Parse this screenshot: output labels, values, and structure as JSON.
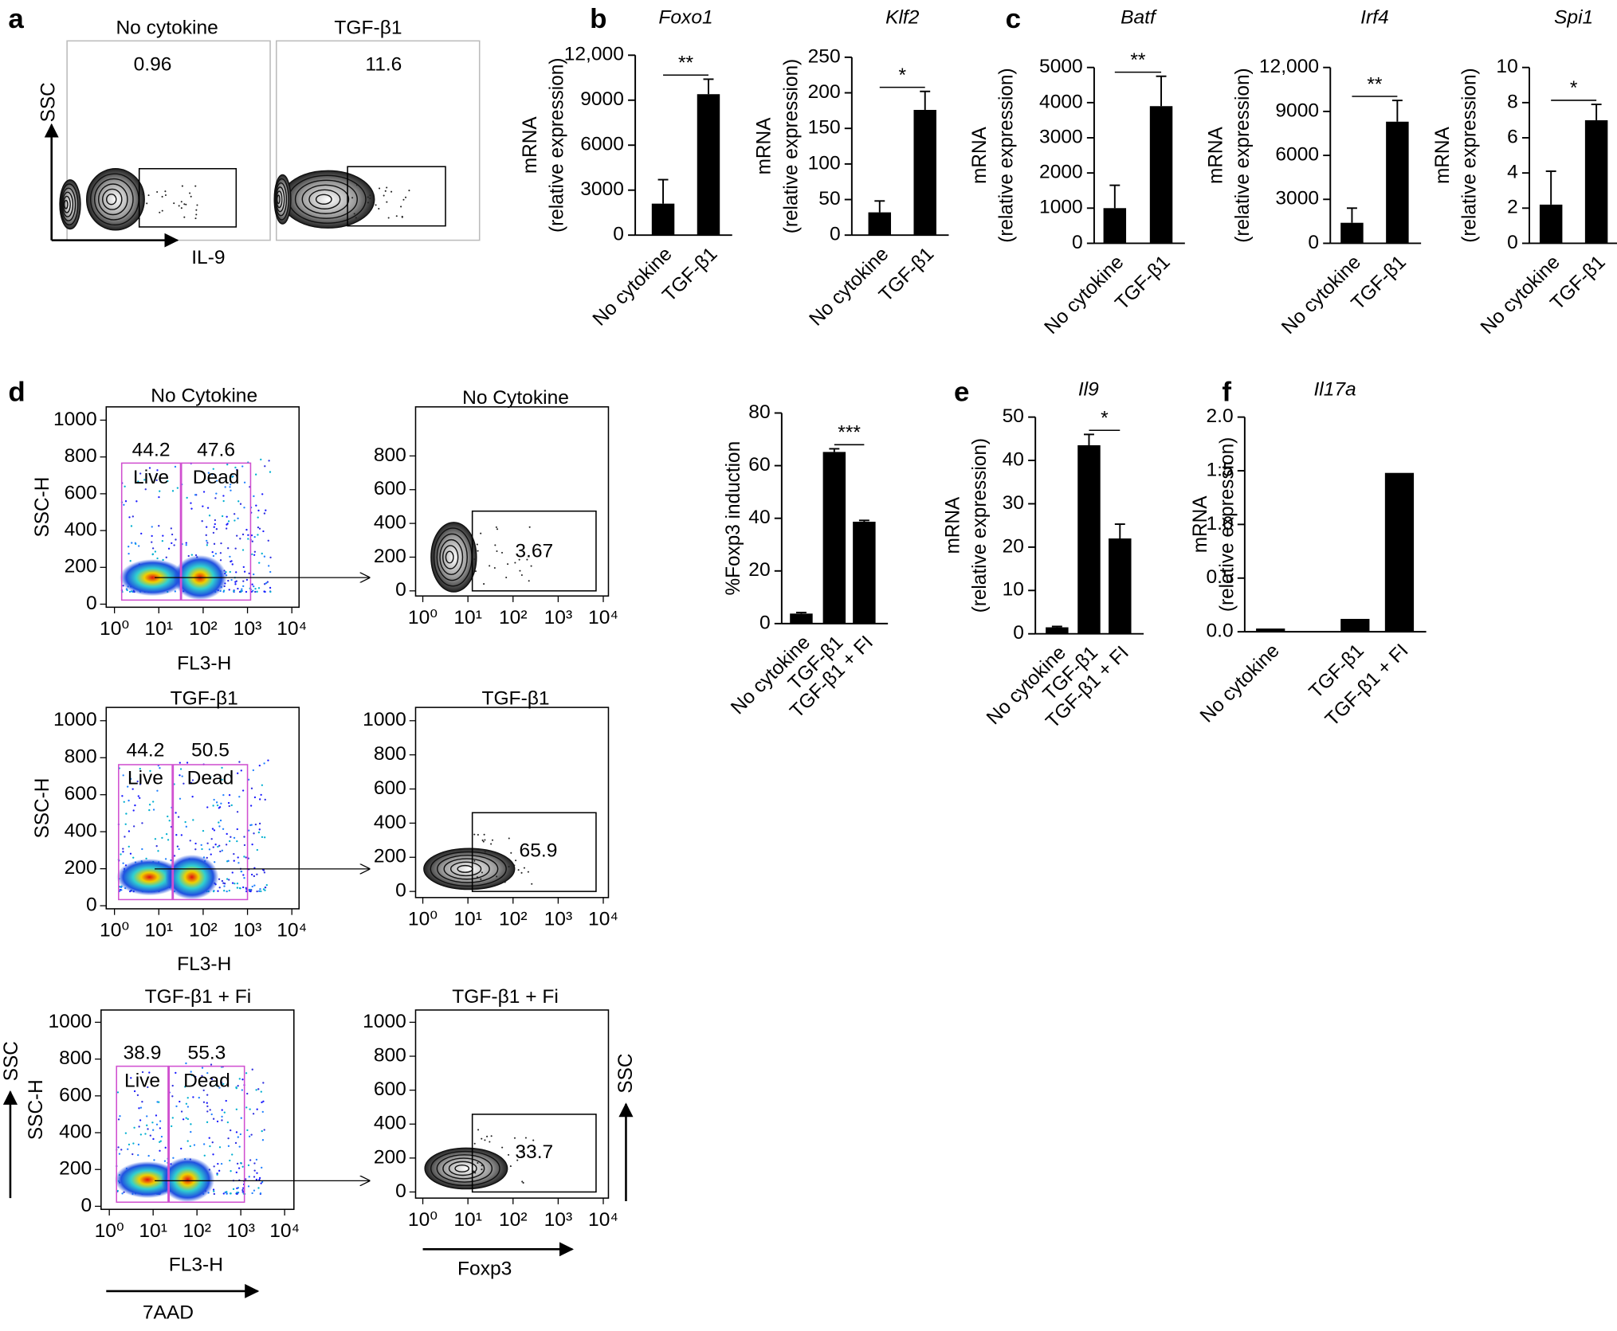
{
  "panel_letters": [
    "a",
    "b",
    "c",
    "d",
    "e",
    "f"
  ],
  "chart_data": [
    {
      "type": "flow-contour",
      "title": "No cytokine",
      "gate_label": 0.96,
      "ylabel": "SSC",
      "xlabel": "IL-9"
    },
    {
      "type": "flow-contour",
      "title": "TGF-β1",
      "gate_label": 11.6
    },
    {
      "type": "bar",
      "title": "Foxo1",
      "ylabel": [
        "mRNA",
        "(relative expression)"
      ],
      "categories": [
        "No cytokine",
        "TGF-β1"
      ],
      "values": [
        2100,
        9400
      ],
      "errors": [
        1600,
        1000
      ],
      "ylim": [
        0,
        12000
      ],
      "yticks": [
        0,
        3000,
        6000,
        9000,
        {
          "value": 12000,
          "label": "12,000"
        }
      ],
      "color": "#000000",
      "significance": "**"
    },
    {
      "type": "bar",
      "title": "Klf2",
      "ylabel": [
        "mRNA",
        "(relative expression)"
      ],
      "categories": [
        "No cytokine",
        "TGF-β1"
      ],
      "values": [
        32,
        176
      ],
      "errors": [
        16,
        26
      ],
      "ylim": [
        0,
        250
      ],
      "yticks": [
        0,
        50,
        100,
        150,
        200,
        250
      ],
      "color": "#000000",
      "significance": "*"
    },
    {
      "type": "bar",
      "title": "Batf",
      "ylabel": [
        "mRNA",
        "(relative expression)"
      ],
      "categories": [
        "No cytokine",
        "TGF-β1"
      ],
      "values": [
        1000,
        3900
      ],
      "errors": [
        650,
        850
      ],
      "ylim": [
        0,
        5000
      ],
      "yticks": [
        0,
        1000,
        2000,
        3000,
        4000,
        5000
      ],
      "color": "#000000",
      "significance": "**"
    },
    {
      "type": "bar",
      "title": "Irf4",
      "ylabel": [
        "mRNA",
        "(relative expression)"
      ],
      "categories": [
        "No cytokine",
        "TGF-β1"
      ],
      "values": [
        1400,
        8300
      ],
      "errors": [
        1000,
        1450
      ],
      "ylim": [
        0,
        12000
      ],
      "yticks": [
        0,
        3000,
        6000,
        9000,
        {
          "value": 12000,
          "label": "12,000"
        }
      ],
      "color": "#000000",
      "significance": "**"
    },
    {
      "type": "bar",
      "title": "Spi1",
      "ylabel": [
        "mRNA",
        "(relative expression)"
      ],
      "categories": [
        "No cytokine",
        "TGF-β1"
      ],
      "values": [
        2.2,
        7.0
      ],
      "errors": [
        1.9,
        0.9
      ],
      "ylim": [
        0,
        10
      ],
      "yticks": [
        0,
        2,
        4,
        6,
        8,
        10
      ],
      "color": "#000000",
      "significance": "*"
    },
    {
      "type": "flow-density",
      "title": "No Cytokine",
      "ylabel": "SSC-H",
      "xlabel": "FL3-H",
      "ylim": [
        0,
        1000
      ],
      "yticks": [
        0,
        200,
        400,
        600,
        800,
        1000
      ],
      "xlim": [
        1,
        10000
      ],
      "log_x": true,
      "xticks": [
        {
          "value": 1,
          "label": "10⁰"
        },
        {
          "value": 10,
          "label": "10¹"
        },
        {
          "value": 100,
          "label": "10²"
        },
        {
          "value": 1000,
          "label": "10³"
        },
        {
          "value": 10000,
          "label": "10⁴"
        }
      ],
      "gates": [
        {
          "name": "Live",
          "value": 44.2
        },
        {
          "name": "Dead",
          "value": 47.6
        }
      ]
    },
    {
      "type": "flow-contour",
      "title": "No Cytokine",
      "ylim": [
        0,
        1000
      ],
      "yticks": [
        0,
        200,
        400,
        600,
        800
      ],
      "xlim": [
        1,
        10000
      ],
      "log_x": true,
      "xticks": [
        {
          "value": 1,
          "label": "10⁰"
        },
        {
          "value": 10,
          "label": "10¹"
        },
        {
          "value": 100,
          "label": "10²"
        },
        {
          "value": 1000,
          "label": "10³"
        },
        {
          "value": 10000,
          "label": "10⁴"
        }
      ],
      "gate_label": 3.67
    },
    {
      "type": "flow-density",
      "title": "TGF-β1",
      "ylabel": "SSC-H",
      "xlabel": "FL3-H",
      "ylim": [
        0,
        1000
      ],
      "yticks": [
        0,
        200,
        400,
        600,
        800,
        1000
      ],
      "xlim": [
        1,
        10000
      ],
      "log_x": true,
      "xticks": [
        {
          "value": 1,
          "label": "10⁰"
        },
        {
          "value": 10,
          "label": "10¹"
        },
        {
          "value": 100,
          "label": "10²"
        },
        {
          "value": 1000,
          "label": "10³"
        },
        {
          "value": 10000,
          "label": "10⁴"
        }
      ],
      "gates": [
        {
          "name": "Live",
          "value": 44.2
        },
        {
          "name": "Dead",
          "value": 50.5
        }
      ]
    },
    {
      "type": "flow-contour",
      "title": "TGF-β1",
      "ylim": [
        0,
        1000
      ],
      "yticks": [
        0,
        200,
        400,
        600,
        800,
        1000
      ],
      "xlim": [
        1,
        10000
      ],
      "log_x": true,
      "xticks": [
        {
          "value": 1,
          "label": "10⁰"
        },
        {
          "value": 10,
          "label": "10¹"
        },
        {
          "value": 100,
          "label": "10²"
        },
        {
          "value": 1000,
          "label": "10³"
        },
        {
          "value": 10000,
          "label": "10⁴"
        }
      ],
      "gate_label": 65.9
    },
    {
      "type": "flow-density",
      "title": "TGF-β1 + Fi",
      "ylabel": "SSC-H",
      "xlabel": "FL3-H",
      "xlabel2": "7AAD",
      "ylabel2": "SSC",
      "ylim": [
        0,
        1000
      ],
      "yticks": [
        0,
        200,
        400,
        600,
        800,
        1000
      ],
      "xlim": [
        1,
        10000
      ],
      "log_x": true,
      "xticks": [
        {
          "value": 1,
          "label": "10⁰"
        },
        {
          "value": 10,
          "label": "10¹"
        },
        {
          "value": 100,
          "label": "10²"
        },
        {
          "value": 1000,
          "label": "10³"
        },
        {
          "value": 10000,
          "label": "10⁴"
        }
      ],
      "gates": [
        {
          "name": "Live",
          "value": 38.9
        },
        {
          "name": "Dead",
          "value": 55.3
        }
      ]
    },
    {
      "type": "flow-contour",
      "title": "TGF-β1 + Fi",
      "xlabel2": "Foxp3",
      "ylabel2": "SSC",
      "ylim": [
        0,
        1000
      ],
      "yticks": [
        0,
        200,
        400,
        600,
        800,
        1000
      ],
      "xlim": [
        1,
        10000
      ],
      "log_x": true,
      "xticks": [
        {
          "value": 1,
          "label": "10⁰"
        },
        {
          "value": 10,
          "label": "10¹"
        },
        {
          "value": 100,
          "label": "10²"
        },
        {
          "value": 1000,
          "label": "10³"
        },
        {
          "value": 10000,
          "label": "10⁴"
        }
      ],
      "gate_label": 33.7
    },
    {
      "type": "bar",
      "ylabel": "%Foxp3 induction",
      "categories": [
        "No cytokine",
        "TGF-β1",
        "TGF-β1 + FI"
      ],
      "values": [
        3.8,
        65.2,
        38.7
      ],
      "errors": [
        0.4,
        1.2,
        0.5
      ],
      "ylim": [
        0,
        80
      ],
      "yticks": [
        0,
        20,
        40,
        60,
        80
      ],
      "color": "#000000",
      "significance": "***"
    },
    {
      "type": "bar",
      "title": "Il9",
      "ylabel": [
        "mRNA",
        "(relative expression)"
      ],
      "categories": [
        "No cytokine",
        "TGF-β1",
        "TGF-β1 + FI"
      ],
      "values": [
        1.5,
        43.5,
        22
      ],
      "errors": [
        0.2,
        2.5,
        3.3
      ],
      "ylim": [
        0,
        50
      ],
      "yticks": [
        0,
        10,
        20,
        30,
        40,
        50
      ],
      "color": "#000000",
      "significance": "*"
    },
    {
      "type": "bar",
      "title": "Il17a",
      "ylabel": [
        "mRNA",
        "(relative expression)"
      ],
      "categories": [
        "No cytokine",
        "TGF-β1",
        "TGF-β1 + FI"
      ],
      "values": [
        0.03,
        0.12,
        1.48
      ],
      "ylim": [
        0,
        2
      ],
      "yticks": [
        {
          "value": 0,
          "label": "0.0"
        },
        0.5,
        {
          "value": 1,
          "label": "1.0"
        },
        1.5,
        {
          "value": 2,
          "label": "2.0"
        }
      ],
      "color": "#000000"
    }
  ]
}
